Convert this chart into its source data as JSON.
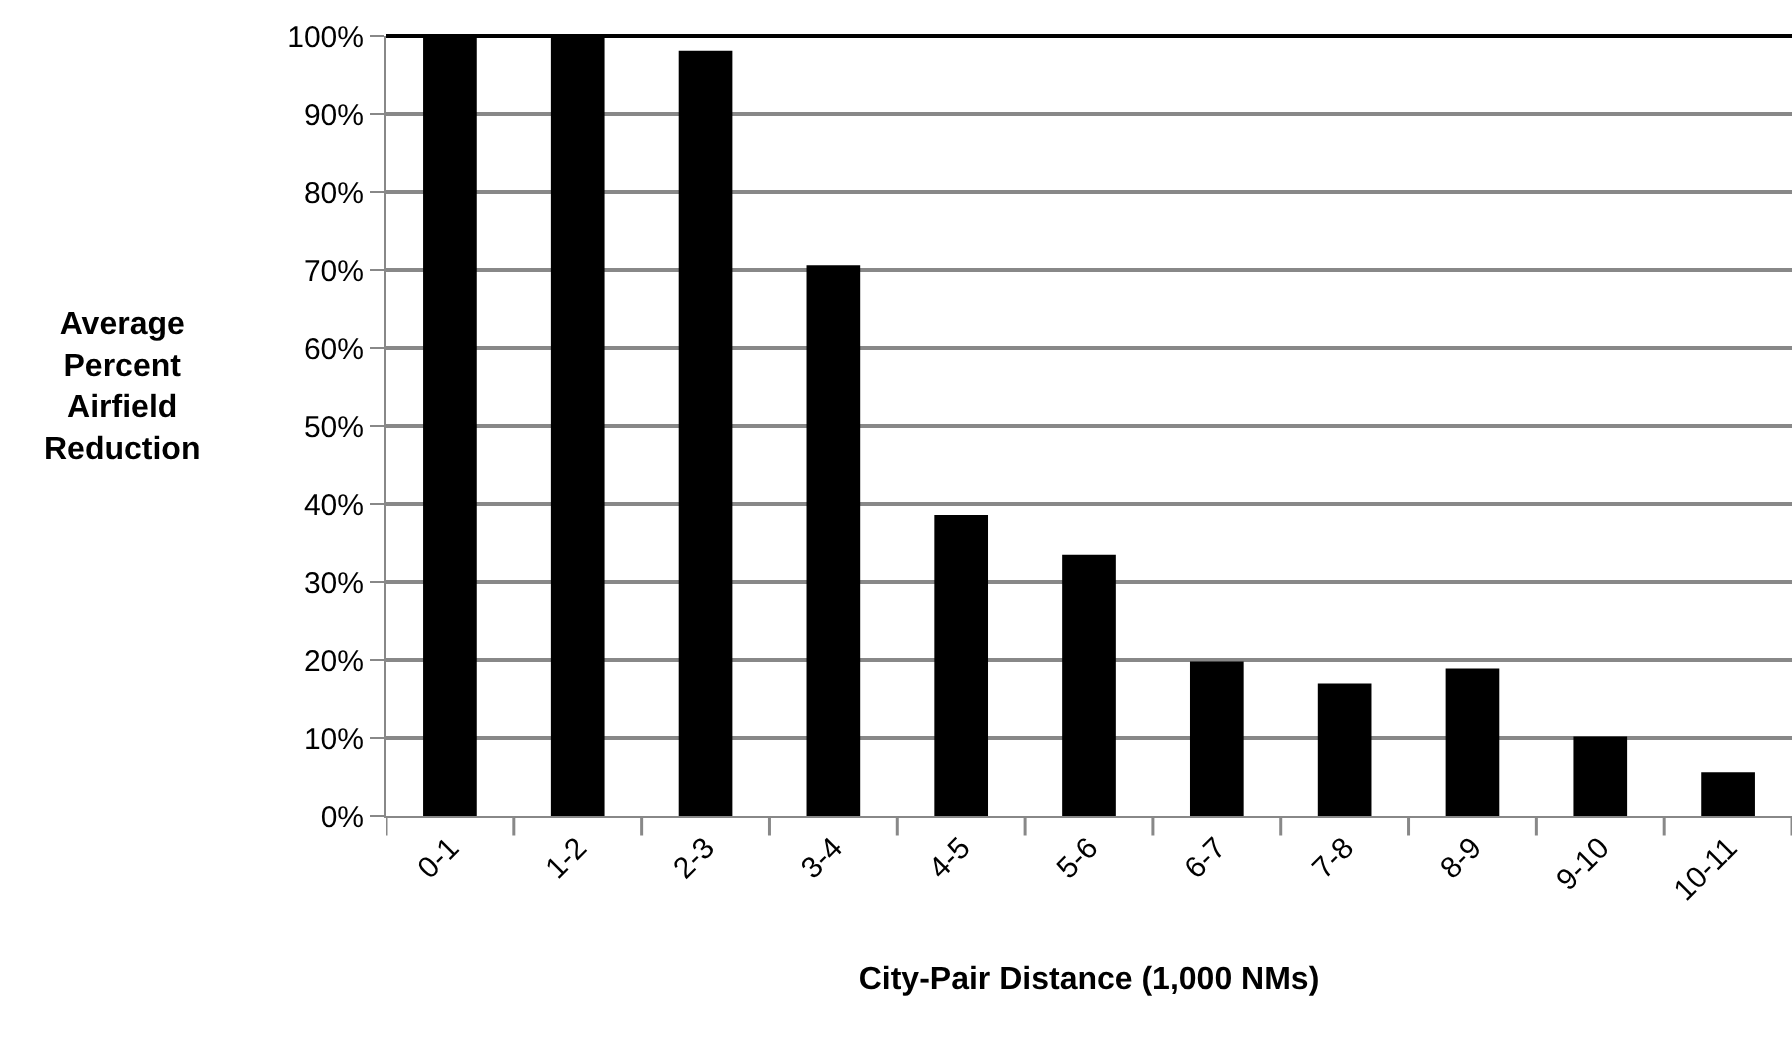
{
  "chart_data": {
    "type": "bar",
    "xlabel": "City-Pair Distance (1,000 NMs)",
    "ylabel": "Average\nPercent\nAirfield\nReduction",
    "categories": [
      "0-1",
      "1-2",
      "2-3",
      "3-4",
      "4-5",
      "5-6",
      "6-7",
      "7-8",
      "8-9",
      "9-10",
      "10-11"
    ],
    "values": [
      100,
      100,
      98.1,
      70.6,
      38.6,
      33.5,
      19.8,
      17.0,
      18.9,
      10.2,
      5.6
    ],
    "color": "#000000",
    "ylim": [
      0,
      100
    ],
    "yticks": [
      {
        "value": 0,
        "label": "0%"
      },
      {
        "value": 10,
        "label": "10%"
      },
      {
        "value": 20,
        "label": "20%"
      },
      {
        "value": 30,
        "label": "30%"
      },
      {
        "value": 40,
        "label": "40%"
      },
      {
        "value": 50,
        "label": "50%"
      },
      {
        "value": 60,
        "label": "60%"
      },
      {
        "value": 70,
        "label": "70%"
      },
      {
        "value": 80,
        "label": "80%"
      },
      {
        "value": 90,
        "label": "90%"
      },
      {
        "value": 100,
        "label": "100%"
      }
    ],
    "grid": "y"
  }
}
